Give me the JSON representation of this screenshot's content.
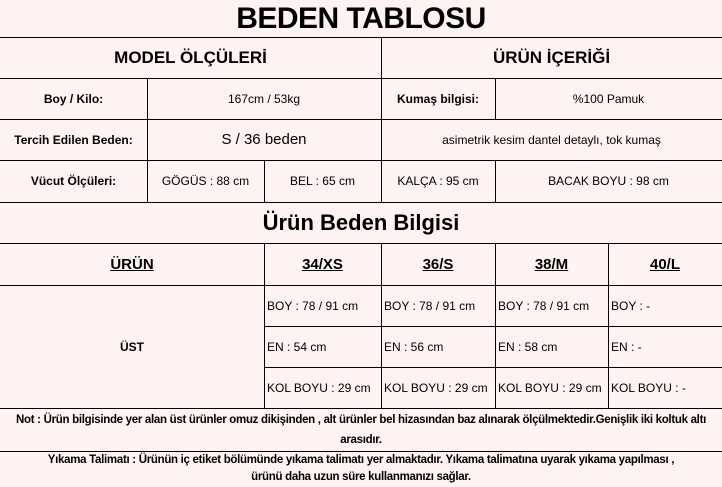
{
  "title": "BEDEN TABLOSU",
  "model": {
    "header": "MODEL ÖLÇÜLERİ",
    "boy_kilo_label": "Boy / Kilo:",
    "boy_kilo_value": "167cm / 53kg",
    "beden_label": "Tercih Edilen Beden:",
    "beden_value": "S / 36 beden",
    "vucut_label": "Vücut Ölçüleri:",
    "gogus": "GÖGÜS : 88 cm",
    "bel": "BEL : 65 cm",
    "kalca": "KALÇA : 95 cm",
    "bacak": "BACAK BOYU : 98 cm"
  },
  "content": {
    "header": "ÜRÜN İÇERİĞİ",
    "kumas_label": "Kumaş bilgisi:",
    "kumas_value": "%100 Pamuk",
    "description": "asimetrik kesim dantel detaylı, tok kumaş"
  },
  "size_section": {
    "title": "Ürün Beden Bilgisi",
    "headers": [
      "ÜRÜN",
      "34/XS",
      "36/S",
      "38/M",
      "40/L"
    ],
    "product": "ÜST",
    "rows": [
      [
        "BOY : 78 / 91 cm",
        "BOY : 78 / 91 cm",
        "BOY : 78 / 91 cm",
        "BOY : -"
      ],
      [
        "EN : 54 cm",
        "EN : 56 cm",
        "EN : 58 cm",
        "EN : -"
      ],
      [
        "KOL BOYU : 29 cm",
        "KOL BOYU : 29 cm",
        "KOL BOYU : 29 cm",
        "KOL BOYU : -"
      ]
    ]
  },
  "note": "Not : Ürün bilgisinde yer alan üst ürünler omuz dikişinden , alt ürünler bel hizasından baz alınarak ölçülmektedir.Genişlik iki koltuk altı arasıdır.",
  "washing": "Yıkama Talimatı : Ürünün iç etiket bölümünde yıkama talimatı yer almaktadır. Yıkama talimatına uyarak yıkama yapılması , ürünü daha uzun süre kullanmanızı sağlar."
}
